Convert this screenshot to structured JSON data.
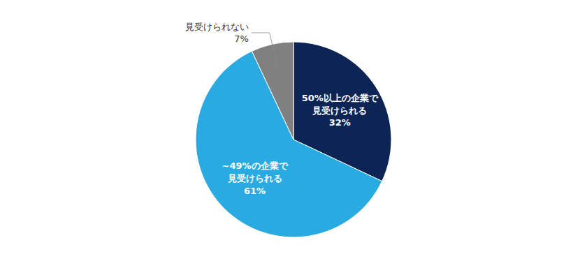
{
  "chart_data": {
    "type": "pie",
    "values": [
      32,
      61,
      7
    ],
    "labels": [
      "50%以上の企業で\n見受けられる\n32%",
      "~49%の企業で\n見受けられる\n61%",
      "見受けられない\n7%"
    ],
    "colors": [
      "#0d2554",
      "#29abe2",
      "#808080"
    ]
  }
}
